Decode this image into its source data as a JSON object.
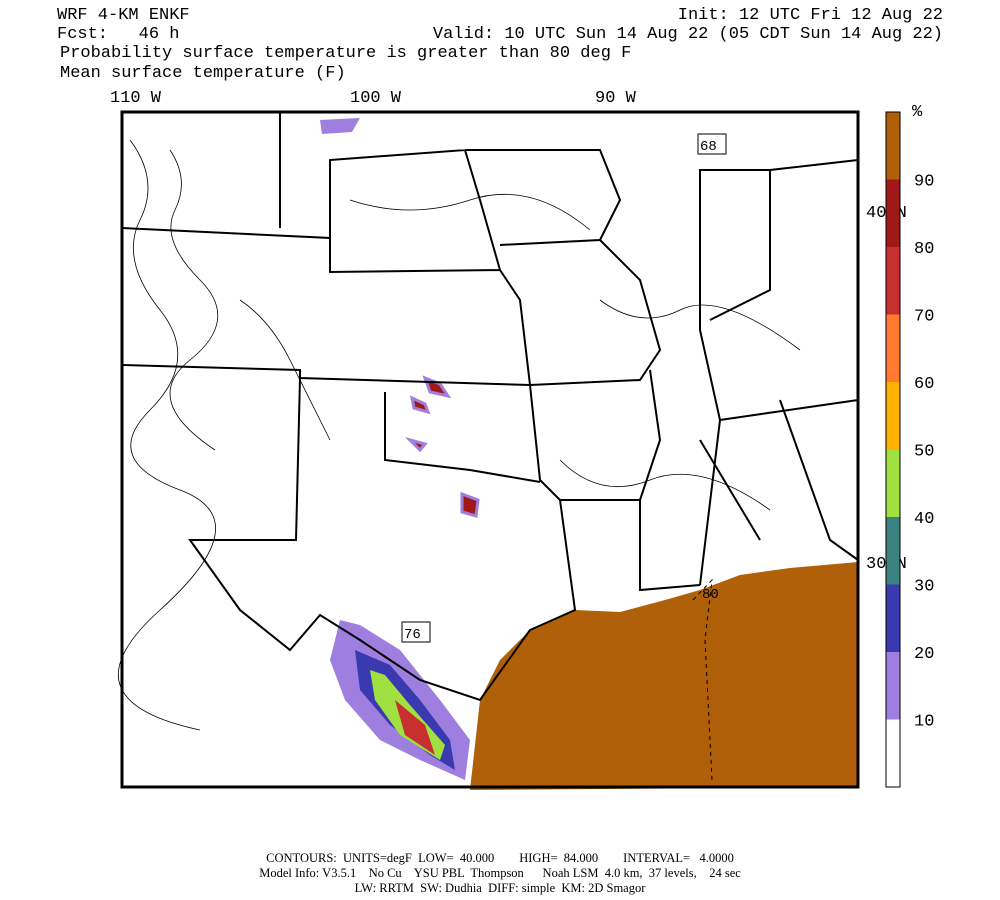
{
  "header": {
    "model": "WRF 4-KM ENKF",
    "forecast": "Fcst:   46 h",
    "init": "Init: 12 UTC Fri 12 Aug 22",
    "valid": "Valid: 10 UTC Sun 14 Aug 22 (05 CDT Sun 14 Aug 22)",
    "field1": "Probability surface temperature is greater than 80 deg F",
    "field2": "Mean surface temperature (F)"
  },
  "map": {
    "longitude_labels": [
      "110 W",
      "100 W",
      "90 W"
    ],
    "latitude_labels": [
      "40 N",
      "30 N"
    ],
    "contour_labels": [
      "68",
      "76",
      "80"
    ]
  },
  "colorbar": {
    "unit": "%",
    "labels": [
      "10",
      "20",
      "30",
      "40",
      "50",
      "60",
      "70",
      "80",
      "90"
    ],
    "colors": [
      "#ffffff",
      "#9e7fe0",
      "#3a3ab0",
      "#3c8280",
      "#a0e040",
      "#ffb000",
      "#ff7a30",
      "#c83030",
      "#a01818",
      "#b06008"
    ]
  },
  "footer": {
    "line1": "CONTOURS:  UNITS=degF  LOW=  40.000        HIGH=  84.000        INTERVAL=   4.0000",
    "line2": "Model Info: V3.5.1    No Cu    YSU PBL  Thompson      Noah LSM  4.0 km,  37 levels,    24 sec",
    "line3": "LW: RRTM  SW: Dudhia  DIFF: simple  KM: 2D Smagor"
  }
}
